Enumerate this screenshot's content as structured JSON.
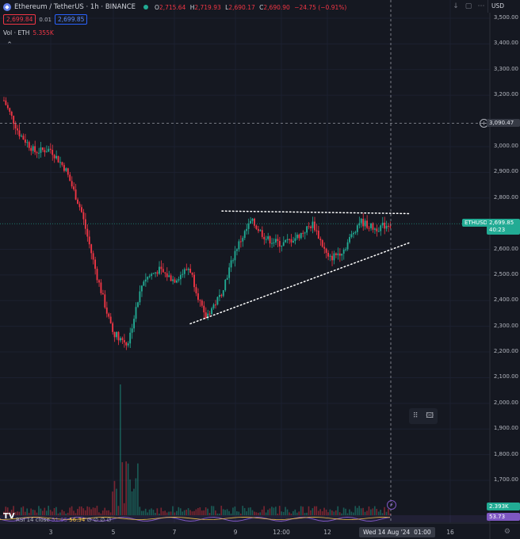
{
  "header": {
    "symbol_title": "Ethereum / TetherUS · 1h · BINANCE",
    "ohlc": {
      "open_label": "O",
      "open": "2,715.64",
      "high_label": "H",
      "high": "2,719.93",
      "low_label": "L",
      "low": "2,690.17",
      "close_label": "C",
      "close": "2,690.90",
      "change": "−24.75 (−0.91%)"
    }
  },
  "trade": {
    "sell_price": "2,699.84",
    "spread": "0.01",
    "buy_price": "2,699.85"
  },
  "volume": {
    "label": "Vol · ETH",
    "value": "5.355K"
  },
  "currency": "USD",
  "price_axis": {
    "labels": [
      {
        "text": "3,500.00",
        "value": 3500
      },
      {
        "text": "3,400.00",
        "value": 3400
      },
      {
        "text": "3,300.00",
        "value": 3300
      },
      {
        "text": "3,200.00",
        "value": 3200
      },
      {
        "text": "3,000.00",
        "value": 3000
      },
      {
        "text": "2,900.00",
        "value": 2900
      },
      {
        "text": "2,800.00",
        "value": 2800
      },
      {
        "text": "2,600.00",
        "value": 2600
      },
      {
        "text": "2,500.00",
        "value": 2500
      },
      {
        "text": "2,400.00",
        "value": 2400
      },
      {
        "text": "2,300.00",
        "value": 2300
      },
      {
        "text": "2,200.00",
        "value": 2200
      },
      {
        "text": "2,100.00",
        "value": 2100
      },
      {
        "text": "2,000.00",
        "value": 2000
      },
      {
        "text": "1,900.00",
        "value": 1900
      },
      {
        "text": "1,800.00",
        "value": 1800
      },
      {
        "text": "1,700.00",
        "value": 1700
      }
    ],
    "crosshair_price": "3,090.47",
    "symbol_tag": "ETHUSDT",
    "last_price": "2,699.85",
    "countdown": "40:23",
    "volume_tag": "2.393K",
    "rsi_tag": "53.73"
  },
  "time_axis": {
    "labels": [
      "3",
      "5",
      "7",
      "9",
      "12:00",
      "12",
      "16"
    ],
    "crosshair_date": "Wed 14 Aug '24",
    "crosshair_time": "01:00"
  },
  "rsi": {
    "label": "RSI 14 close",
    "v1": "51.85",
    "v2": "56.34",
    "zeros": "∅ ∅ ∅ ∅"
  },
  "chart_data": {
    "type": "candlestick",
    "symbol": "ETHUSDT",
    "interval": "1h",
    "ylim": [
      1650,
      3550
    ],
    "x": [
      "3",
      "5",
      "7",
      "9",
      "12:00",
      "12",
      "16"
    ],
    "approx_close_path": [
      {
        "x": "3",
        "y": 3180
      },
      {
        "x": "3",
        "y": 3050
      },
      {
        "x": "3",
        "y": 2980
      },
      {
        "x": "3",
        "y": 2990
      },
      {
        "x": "5",
        "y": 2910
      },
      {
        "x": "5",
        "y": 2750
      },
      {
        "x": "5",
        "y": 2500
      },
      {
        "x": "5",
        "y": 2280
      },
      {
        "x": "5",
        "y": 2230
      },
      {
        "x": "5",
        "y": 2480
      },
      {
        "x": "7",
        "y": 2520
      },
      {
        "x": "7",
        "y": 2480
      },
      {
        "x": "7",
        "y": 2530
      },
      {
        "x": "7",
        "y": 2330
      },
      {
        "x": "7",
        "y": 2420
      },
      {
        "x": "9",
        "y": 2600
      },
      {
        "x": "9",
        "y": 2710
      },
      {
        "x": "9",
        "y": 2640
      },
      {
        "x": "12:00",
        "y": 2620
      },
      {
        "x": "12:00",
        "y": 2650
      },
      {
        "x": "12",
        "y": 2700
      },
      {
        "x": "12",
        "y": 2560
      },
      {
        "x": "12",
        "y": 2600
      },
      {
        "x": "12",
        "y": 2710
      },
      {
        "x": "12",
        "y": 2680
      },
      {
        "x": "12",
        "y": 2700
      }
    ],
    "trendlines": [
      {
        "name": "resistance",
        "style": "dotted",
        "from": {
          "x": "9",
          "y": 2749
        },
        "to": {
          "x": "16",
          "y": 2739
        }
      },
      {
        "name": "support",
        "style": "dotted",
        "from": {
          "x": "7",
          "y": 2310
        },
        "to": {
          "x": "16",
          "y": 2625
        }
      }
    ],
    "colors": {
      "up": "#22ab94",
      "down": "#f23645",
      "background": "#151821",
      "grid": "#1f2330"
    }
  }
}
